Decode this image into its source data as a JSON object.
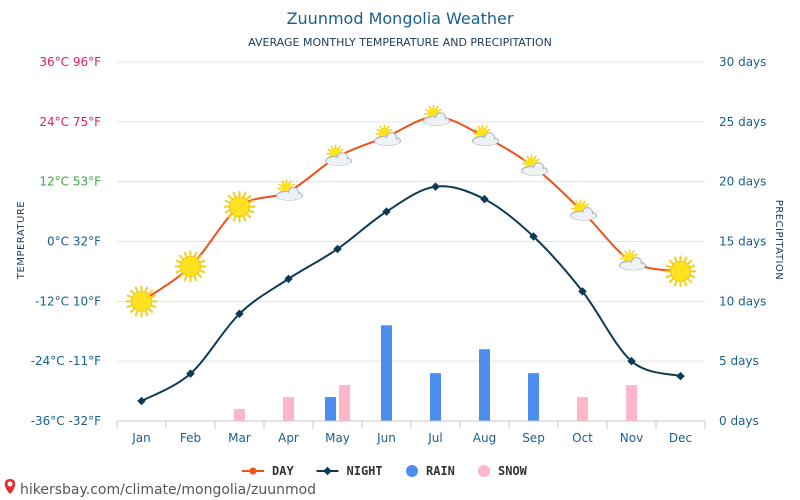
{
  "header": {
    "title": "Zuunmod Mongolia Weather",
    "subtitle": "AVERAGE MONTHLY TEMPERATURE AND PRECIPITATION"
  },
  "source": {
    "text": "hikersbay.com/climate/mongolia/zuunmod"
  },
  "colors": {
    "day": "#f0501a",
    "night": "#0d3b56",
    "rain": "#4d8ff0",
    "snow": "#ffb6c8",
    "grid": "#e3e3e3",
    "right_axis": "#1a5f8f"
  },
  "legend": [
    {
      "label": "DAY",
      "kind": "line-dot",
      "color": "#f0501a"
    },
    {
      "label": "NIGHT",
      "kind": "line-diamond",
      "color": "#0d3b56"
    },
    {
      "label": "RAIN",
      "kind": "circle",
      "color": "#4d8ff0"
    },
    {
      "label": "SNOW",
      "kind": "circle",
      "color": "#ffb6c8"
    }
  ],
  "chart_data": {
    "type": "line",
    "title": "Zuunmod Mongolia Weather",
    "subtitle": "AVERAGE MONTHLY TEMPERATURE AND PRECIPITATION",
    "categories": [
      "Jan",
      "Feb",
      "Mar",
      "Apr",
      "May",
      "Jun",
      "Jul",
      "Aug",
      "Sep",
      "Oct",
      "Nov",
      "Dec"
    ],
    "y_left": {
      "label": "TEMPERATURE",
      "ylim": [
        -36,
        36
      ],
      "ticks": [
        {
          "value": 36,
          "label": "36°C 96°F",
          "color": "#e0205a"
        },
        {
          "value": 24,
          "label": "24°C 75°F",
          "color": "#e0205a"
        },
        {
          "value": 12,
          "label": "12°C 53°F",
          "color": "#3caa3c"
        },
        {
          "value": 0,
          "label": "0°C 32°F",
          "color": "#1a5f8f"
        },
        {
          "value": -12,
          "label": "-12°C 10°F",
          "color": "#1a5f8f"
        },
        {
          "value": -24,
          "label": "-24°C -11°F",
          "color": "#1a5f8f"
        },
        {
          "value": -36,
          "label": "-36°C -32°F",
          "color": "#1a5f8f"
        }
      ]
    },
    "y_right": {
      "label": "PRECIPITATION",
      "ylim": [
        0,
        30
      ],
      "ticks": [
        {
          "value": 30,
          "label": "30 days"
        },
        {
          "value": 25,
          "label": "25 days"
        },
        {
          "value": 20,
          "label": "20 days"
        },
        {
          "value": 15,
          "label": "15 days"
        },
        {
          "value": 10,
          "label": "10 days"
        },
        {
          "value": 5,
          "label": "5 days"
        },
        {
          "value": 0,
          "label": "0 days"
        }
      ]
    },
    "series": [
      {
        "name": "DAY",
        "axis": "left",
        "values": [
          -12,
          -5,
          7,
          10,
          17,
          21,
          25,
          21,
          15,
          6,
          -4,
          -6
        ],
        "icons": [
          "sun",
          "sun",
          "sun",
          "partly-cloudy",
          "partly-cloudy",
          "partly-cloudy",
          "partly-cloudy",
          "partly-cloudy",
          "partly-cloudy",
          "partly-cloudy",
          "partly-cloudy",
          "sun"
        ]
      },
      {
        "name": "NIGHT",
        "axis": "left",
        "values": [
          -32,
          -26.5,
          -14.5,
          -7.5,
          -1.5,
          6,
          11,
          8.5,
          1,
          -10,
          -24,
          -27
        ]
      },
      {
        "name": "RAIN",
        "axis": "right",
        "values": [
          0,
          0,
          0,
          0,
          2,
          8,
          4,
          6,
          4,
          0,
          0,
          0
        ]
      },
      {
        "name": "SNOW",
        "axis": "right",
        "values": [
          0,
          0,
          1,
          2,
          3,
          0,
          0,
          0,
          0,
          2,
          3,
          0
        ]
      }
    ],
    "grid": true,
    "legend_position": "bottom-center"
  }
}
